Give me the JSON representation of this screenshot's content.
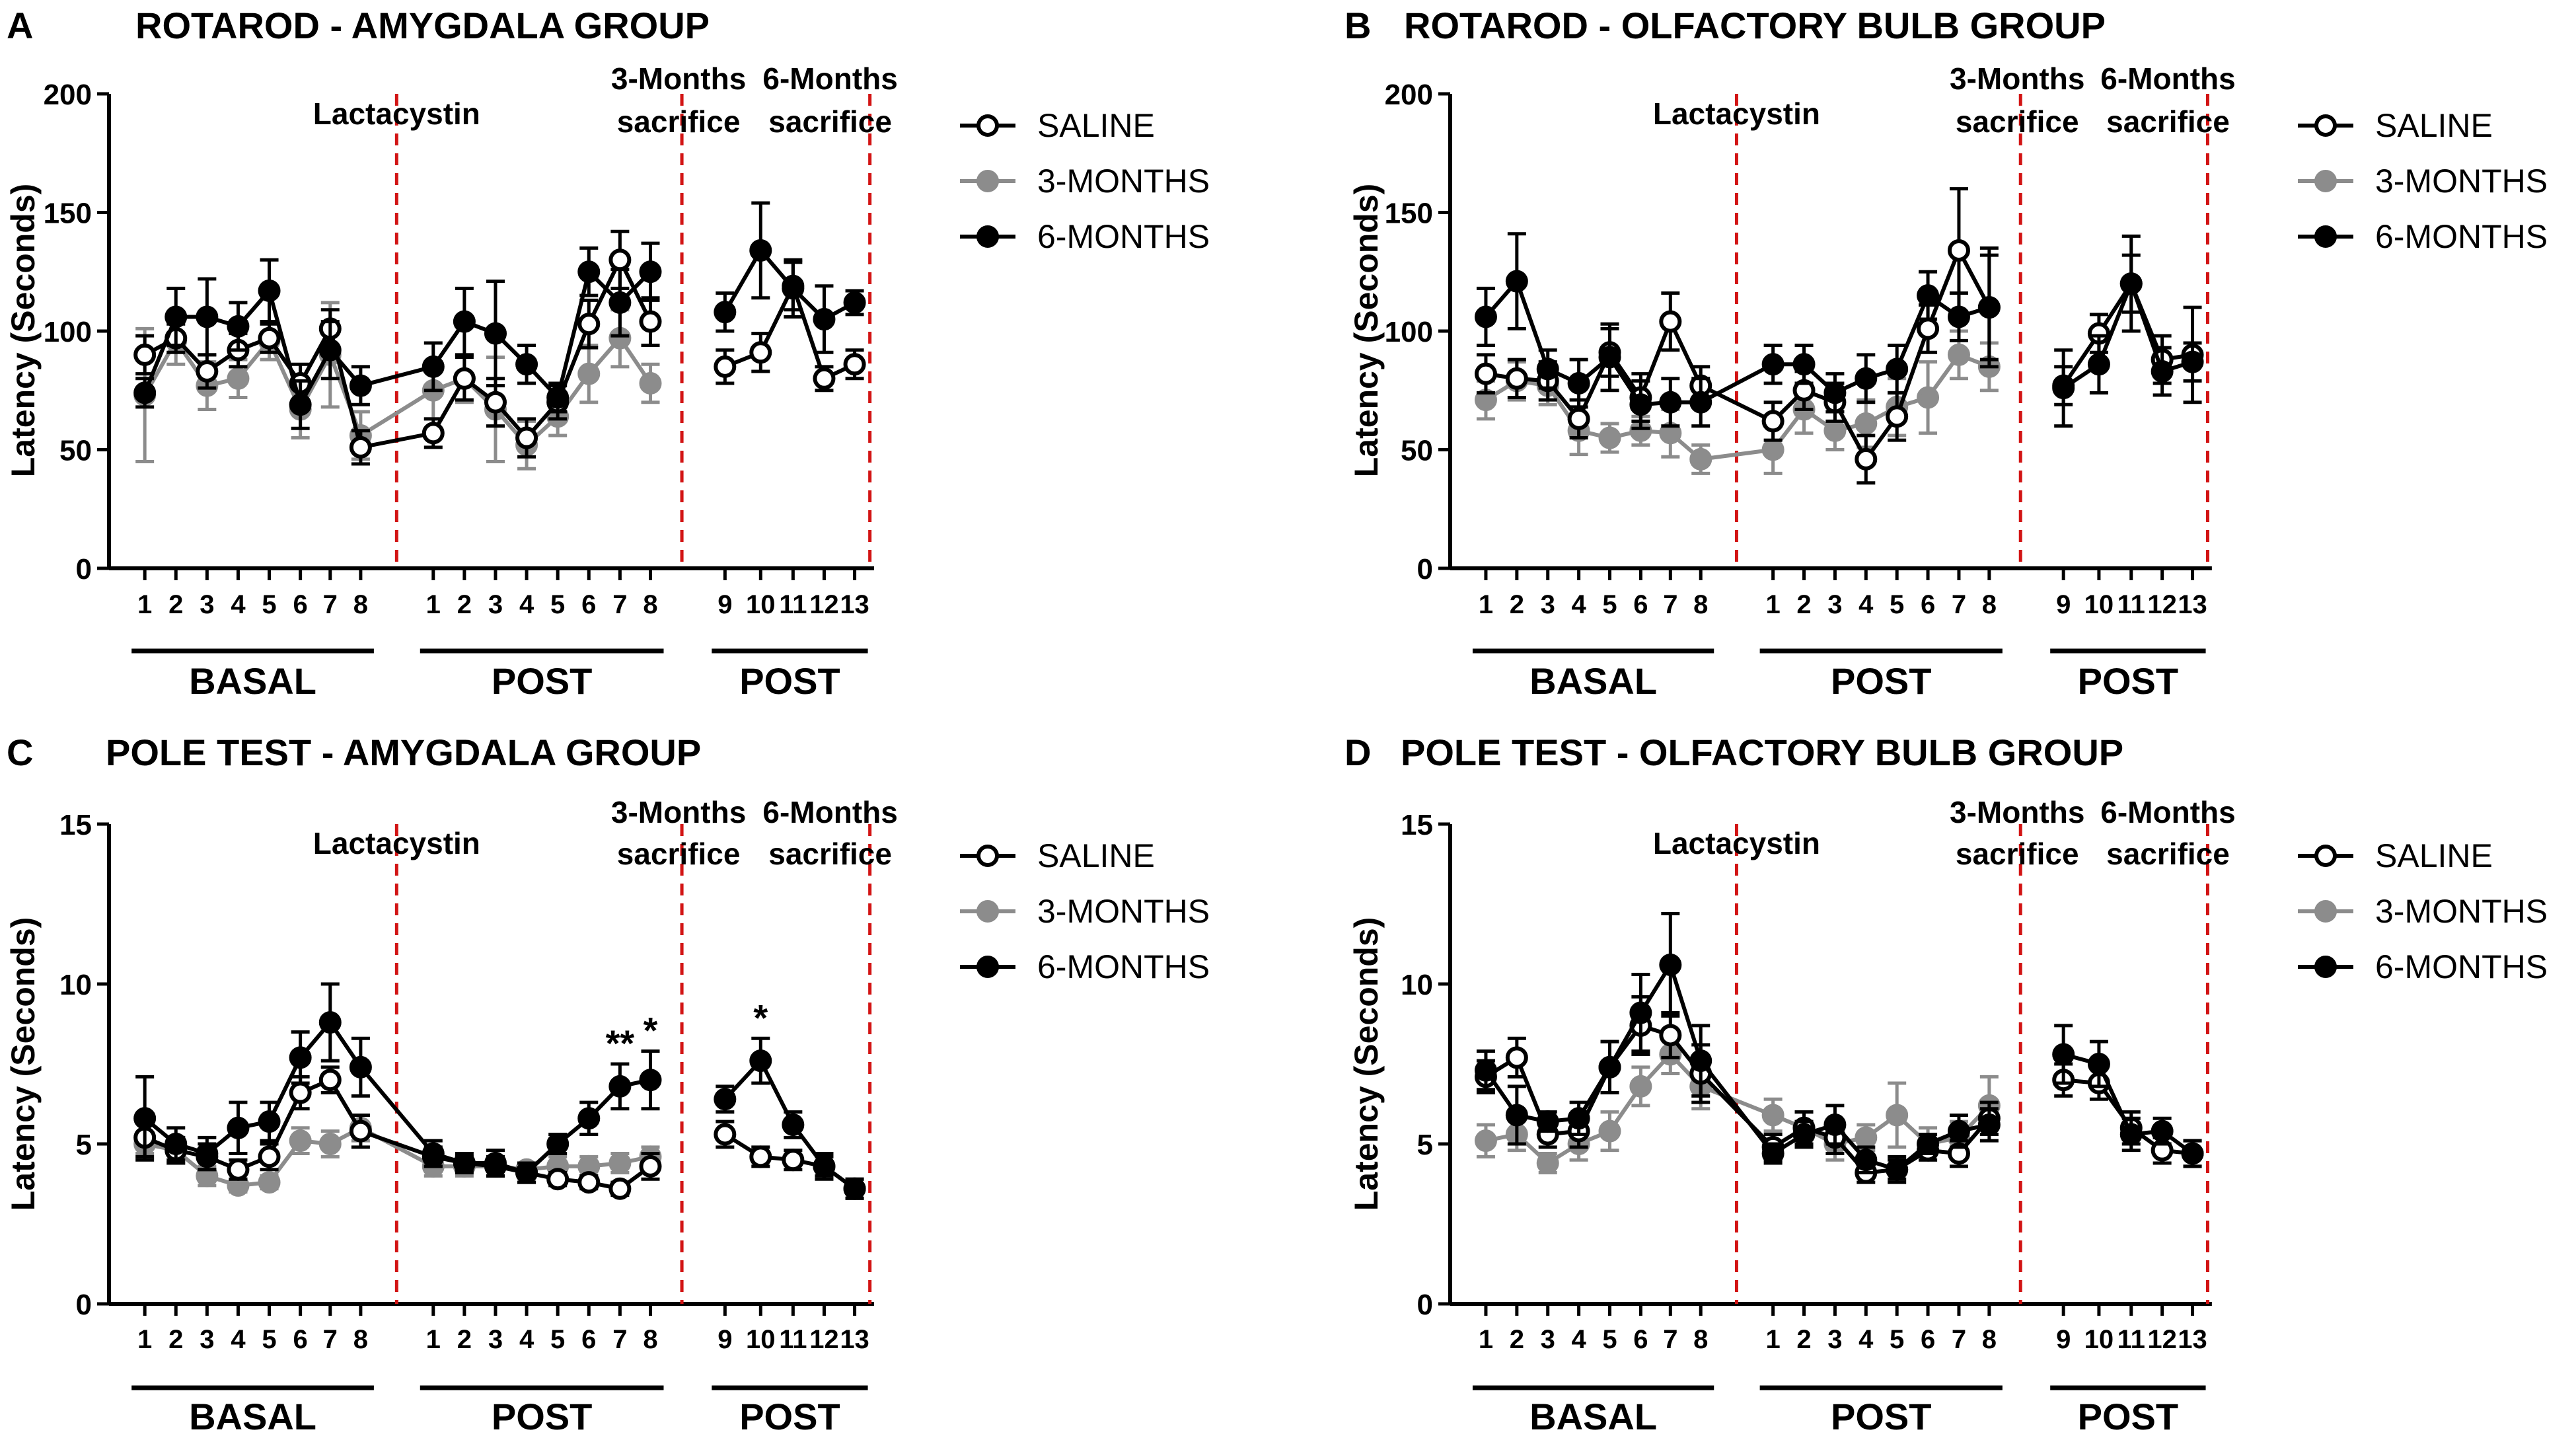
{
  "colors": {
    "saline": "#000000",
    "three_months": "#8c8c8c",
    "six_months": "#000000",
    "marker": "#d21414",
    "axis": "#000000"
  },
  "axis": {
    "x_tick_labels": [
      "1",
      "2",
      "3",
      "4",
      "5",
      "6",
      "7",
      "8",
      "1",
      "2",
      "3",
      "4",
      "5",
      "6",
      "7",
      "8",
      "9",
      "10",
      "11",
      "12",
      "13"
    ],
    "groups": [
      "BASAL",
      "POST",
      "POST"
    ]
  },
  "legend": {
    "saline": "SALINE",
    "three_months": "3-MONTHS",
    "six_months": "6-MONTHS"
  },
  "markers": {
    "lactacystin": "Lactacystin",
    "three_months_line1": "3-Months",
    "three_months_line2": "sacrifice",
    "six_months_line1": "6-Months",
    "six_months_line2": "sacrifice"
  },
  "chart_data": [
    {
      "type": "line",
      "letter": "A",
      "title": "ROTAROD - AMYGDALA GROUP",
      "ylabel": "Latency (Seconds)",
      "ylim": [
        0,
        200
      ],
      "yticks": [
        0,
        50,
        100,
        150,
        200
      ],
      "annotations": [],
      "series": [
        {
          "name": "SALINE",
          "values": [
            90,
            97,
            83,
            92,
            97,
            78,
            101,
            51,
            57,
            80,
            70,
            55,
            70,
            103,
            130,
            104,
            null,
            null,
            null,
            null,
            null,
            null,
            85,
            91,
            119,
            80,
            86
          ],
          "errors": [
            8,
            6,
            7,
            7,
            6,
            8,
            8,
            7,
            6,
            9,
            10,
            8,
            7,
            10,
            12,
            10,
            null,
            null,
            null,
            null,
            null,
            null,
            7,
            8,
            10,
            5,
            6
          ]
        },
        {
          "name": "3-MONTHS",
          "values": [
            73,
            96,
            77,
            80,
            96,
            67,
            90,
            56,
            75,
            80,
            67,
            52,
            64,
            82,
            97,
            78,
            null,
            null,
            null,
            null,
            null,
            null,
            null,
            null,
            null,
            null,
            null
          ],
          "errors": [
            28,
            10,
            10,
            8,
            8,
            12,
            22,
            10,
            12,
            10,
            22,
            10,
            8,
            12,
            12,
            8,
            null,
            null,
            null,
            null,
            null,
            null,
            null,
            null,
            null,
            null,
            null
          ]
        },
        {
          "name": "6-MONTHS",
          "values": [
            74,
            106,
            106,
            102,
            117,
            69,
            92,
            77,
            85,
            104,
            99,
            86,
            72,
            125,
            112,
            125,
            null,
            null,
            null,
            null,
            null,
            null,
            108,
            134,
            118,
            105,
            112
          ],
          "errors": [
            6,
            12,
            16,
            10,
            13,
            10,
            12,
            8,
            10,
            14,
            22,
            8,
            6,
            10,
            14,
            12,
            null,
            null,
            null,
            null,
            null,
            null,
            8,
            20,
            12,
            14,
            5
          ]
        }
      ]
    },
    {
      "type": "line",
      "letter": "B",
      "title": "ROTAROD - OLFACTORY BULB GROUP",
      "ylabel": "Latency (Seconds)",
      "ylim": [
        0,
        200
      ],
      "yticks": [
        0,
        50,
        100,
        150,
        200
      ],
      "annotations": [],
      "series": [
        {
          "name": "SALINE",
          "values": [
            82,
            80,
            79,
            63,
            91,
            72,
            104,
            77,
            62,
            75,
            70,
            46,
            64,
            101,
            134,
            110,
            null,
            null,
            null,
            null,
            null,
            null,
            77,
            99,
            120,
            88,
            90
          ],
          "errors": [
            8,
            8,
            8,
            8,
            10,
            10,
            12,
            8,
            8,
            8,
            8,
            10,
            10,
            10,
            26,
            22,
            null,
            null,
            null,
            null,
            null,
            null,
            8,
            8,
            12,
            10,
            20
          ]
        },
        {
          "name": "3-MONTHS",
          "values": [
            71,
            79,
            77,
            58,
            55,
            58,
            57,
            46,
            50,
            67,
            58,
            61,
            68,
            72,
            90,
            85,
            null,
            null,
            null,
            null,
            null,
            null,
            null,
            null,
            null,
            null,
            null
          ],
          "errors": [
            8,
            8,
            8,
            10,
            6,
            6,
            10,
            6,
            10,
            10,
            8,
            10,
            12,
            15,
            10,
            10,
            null,
            null,
            null,
            null,
            null,
            null,
            null,
            null,
            null,
            null,
            null
          ]
        },
        {
          "name": "6-MONTHS",
          "values": [
            106,
            121,
            84,
            78,
            89,
            69,
            70,
            70,
            86,
            86,
            74,
            80,
            84,
            115,
            106,
            110,
            null,
            null,
            null,
            null,
            null,
            null,
            76,
            86,
            120,
            83,
            87
          ],
          "errors": [
            12,
            20,
            8,
            10,
            14,
            10,
            10,
            10,
            8,
            8,
            8,
            10,
            10,
            10,
            10,
            25,
            null,
            null,
            null,
            null,
            null,
            null,
            16,
            12,
            20,
            10,
            8
          ]
        }
      ]
    },
    {
      "type": "line",
      "letter": "C",
      "title": "POLE TEST - AMYGDALA GROUP",
      "ylabel": "Latency (Seconds)",
      "ylim": [
        0,
        15
      ],
      "yticks": [
        0,
        5,
        10,
        15
      ],
      "annotations": [
        {
          "text": "**",
          "index": 14
        },
        {
          "text": "*",
          "index": 15
        },
        {
          "text": "*",
          "index": 23
        }
      ],
      "series": [
        {
          "name": "SALINE",
          "values": [
            5.2,
            4.8,
            4.6,
            4.2,
            4.6,
            6.6,
            7.0,
            5.4,
            4.6,
            4.4,
            4.3,
            4.1,
            3.9,
            3.8,
            3.6,
            4.3,
            null,
            null,
            null,
            null,
            null,
            null,
            5.3,
            4.6,
            4.5,
            4.3,
            3.6
          ],
          "errors": [
            0.6,
            0.4,
            0.4,
            0.3,
            0.4,
            0.5,
            0.4,
            0.5,
            0.3,
            0.2,
            0.3,
            0.3,
            0.2,
            0.2,
            0.2,
            0.4,
            null,
            null,
            null,
            null,
            null,
            null,
            0.4,
            0.3,
            0.3,
            0.3,
            0.3
          ]
        },
        {
          "name": "3-MONTHS",
          "values": [
            5.0,
            4.8,
            4.0,
            3.7,
            3.8,
            5.1,
            5.0,
            5.5,
            4.3,
            4.3,
            4.3,
            4.2,
            4.3,
            4.3,
            4.4,
            4.6,
            null,
            null,
            null,
            null,
            null,
            null,
            null,
            null,
            null,
            null,
            null
          ],
          "errors": [
            0.3,
            0.4,
            0.3,
            0.2,
            0.2,
            0.4,
            0.4,
            0.4,
            0.3,
            0.3,
            0.3,
            0.2,
            0.3,
            0.3,
            0.3,
            0.3,
            null,
            null,
            null,
            null,
            null,
            null,
            null,
            null,
            null,
            null,
            null
          ]
        },
        {
          "name": "6-MONTHS",
          "values": [
            5.8,
            5.0,
            4.7,
            5.5,
            5.7,
            7.7,
            8.8,
            7.4,
            4.7,
            4.4,
            4.4,
            4.1,
            5.0,
            5.8,
            6.8,
            7.0,
            null,
            null,
            null,
            null,
            null,
            null,
            6.4,
            7.6,
            5.6,
            4.3,
            3.6
          ],
          "errors": [
            1.3,
            0.5,
            0.5,
            0.8,
            0.6,
            0.8,
            1.2,
            0.9,
            0.4,
            0.3,
            0.4,
            0.3,
            0.3,
            0.5,
            0.7,
            0.9,
            null,
            null,
            null,
            null,
            null,
            null,
            0.4,
            0.7,
            0.4,
            0.4,
            0.3
          ]
        }
      ]
    },
    {
      "type": "line",
      "letter": "D",
      "title": "POLE TEST - OLFACTORY BULB GROUP",
      "ylabel": "Latency (Seconds)",
      "ylim": [
        0,
        15
      ],
      "yticks": [
        0,
        5,
        10,
        15
      ],
      "annotations": [],
      "series": [
        {
          "name": "SALINE",
          "values": [
            7.1,
            7.7,
            5.3,
            5.4,
            7.4,
            8.7,
            8.4,
            7.2,
            4.9,
            5.5,
            5.2,
            4.1,
            4.2,
            4.8,
            4.7,
            5.8,
            null,
            null,
            null,
            null,
            null,
            null,
            7.0,
            6.9,
            5.5,
            4.8,
            4.7
          ],
          "errors": [
            0.5,
            0.6,
            0.4,
            0.5,
            0.8,
            0.9,
            0.7,
            0.9,
            0.4,
            0.5,
            0.5,
            0.3,
            0.3,
            0.3,
            0.4,
            0.5,
            null,
            null,
            null,
            null,
            null,
            null,
            0.5,
            0.5,
            0.5,
            0.4,
            0.4
          ]
        },
        {
          "name": "3-MONTHS",
          "values": [
            5.1,
            5.3,
            4.4,
            5.0,
            5.4,
            6.8,
            7.8,
            6.8,
            5.9,
            5.5,
            5.0,
            5.2,
            5.9,
            5.0,
            5.2,
            6.2,
            null,
            null,
            null,
            null,
            null,
            null,
            null,
            null,
            null,
            null,
            null
          ],
          "errors": [
            0.5,
            0.5,
            0.3,
            0.5,
            0.6,
            0.6,
            0.6,
            0.7,
            0.5,
            0.5,
            0.5,
            0.4,
            1.0,
            0.5,
            0.5,
            0.9,
            null,
            null,
            null,
            null,
            null,
            null,
            null,
            null,
            null,
            null,
            null
          ]
        },
        {
          "name": "6-MONTHS",
          "values": [
            7.3,
            5.9,
            5.7,
            5.8,
            7.4,
            9.1,
            10.6,
            7.6,
            4.7,
            5.3,
            5.6,
            4.5,
            4.2,
            5.0,
            5.4,
            5.6,
            null,
            null,
            null,
            null,
            null,
            null,
            7.8,
            7.5,
            5.3,
            5.4,
            4.7
          ],
          "errors": [
            0.6,
            0.9,
            0.3,
            0.5,
            0.8,
            1.2,
            1.6,
            1.1,
            0.3,
            0.4,
            0.6,
            0.4,
            0.4,
            0.3,
            0.5,
            0.5,
            null,
            null,
            null,
            null,
            null,
            null,
            0.9,
            0.7,
            0.5,
            0.4,
            0.4
          ]
        }
      ]
    }
  ]
}
